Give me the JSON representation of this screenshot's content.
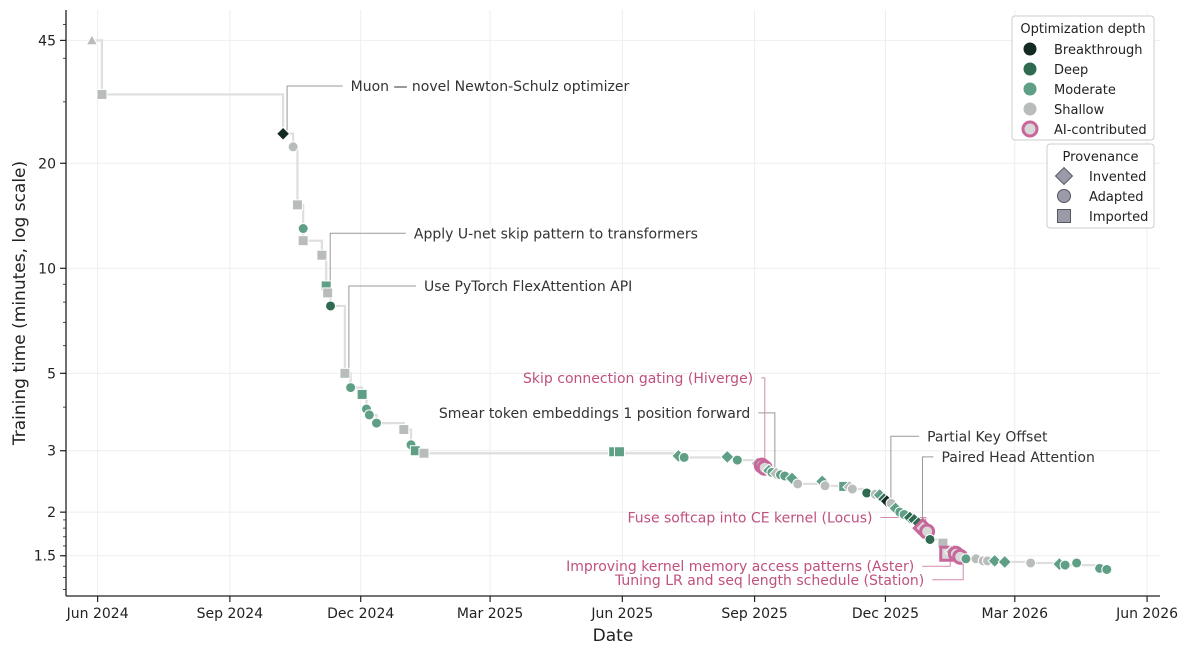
{
  "chart_data": {
    "type": "scatter",
    "xlabel": "Date",
    "ylabel": "Training time (minutes, log scale)",
    "y_scale": "log",
    "ylim": [
      1.15,
      55
    ],
    "xlim": [
      "2024-05-10",
      "2026-06-10"
    ],
    "grid": true,
    "x_ticks": [
      {
        "date": "2024-06-01",
        "label": "Jun 2024"
      },
      {
        "date": "2024-09-01",
        "label": "Sep 2024"
      },
      {
        "date": "2024-12-01",
        "label": "Dec 2024"
      },
      {
        "date": "2025-03-01",
        "label": "Mar 2025"
      },
      {
        "date": "2025-06-01",
        "label": "Jun 2025"
      },
      {
        "date": "2025-09-01",
        "label": "Sep 2025"
      },
      {
        "date": "2025-12-01",
        "label": "Dec 2025"
      },
      {
        "date": "2026-03-01",
        "label": "Mar 2026"
      },
      {
        "date": "2026-06-01",
        "label": "Jun 2026"
      }
    ],
    "y_ticks": [
      {
        "value": 45,
        "label": "45"
      },
      {
        "value": 20,
        "label": "20"
      },
      {
        "value": 10,
        "label": "10"
      },
      {
        "value": 5,
        "label": "5"
      },
      {
        "value": 3,
        "label": "3"
      },
      {
        "value": 2,
        "label": "2"
      },
      {
        "value": 1.5,
        "label": "1.5"
      }
    ],
    "depth_colors": {
      "breakthrough": "#132a22",
      "deep": "#2e6b50",
      "moderate": "#5f9f86",
      "shallow": "#b8bdbb",
      "ai": "#c8689a"
    },
    "points": [
      {
        "date": "2024-05-28",
        "y": 45,
        "shape": "triangle",
        "depth": "shallow"
      },
      {
        "date": "2024-06-04",
        "y": 31.5,
        "shape": "square",
        "depth": "shallow"
      },
      {
        "date": "2024-10-08",
        "y": 24.3,
        "shape": "diamond",
        "depth": "breakthrough"
      },
      {
        "date": "2024-10-15",
        "y": 22.3,
        "shape": "circle",
        "depth": "shallow"
      },
      {
        "date": "2024-10-18",
        "y": 15.2,
        "shape": "square",
        "depth": "shallow"
      },
      {
        "date": "2024-10-22",
        "y": 13.0,
        "shape": "circle",
        "depth": "moderate"
      },
      {
        "date": "2024-10-22",
        "y": 12.0,
        "shape": "square",
        "depth": "shallow"
      },
      {
        "date": "2024-11-04",
        "y": 10.9,
        "shape": "square",
        "depth": "shallow"
      },
      {
        "date": "2024-11-07",
        "y": 8.9,
        "shape": "square",
        "depth": "moderate"
      },
      {
        "date": "2024-11-08",
        "y": 8.5,
        "shape": "square",
        "depth": "shallow"
      },
      {
        "date": "2024-11-10",
        "y": 7.8,
        "shape": "circle",
        "depth": "deep"
      },
      {
        "date": "2024-11-20",
        "y": 5.0,
        "shape": "square",
        "depth": "shallow"
      },
      {
        "date": "2024-11-24",
        "y": 4.55,
        "shape": "circle",
        "depth": "moderate"
      },
      {
        "date": "2024-12-02",
        "y": 4.35,
        "shape": "square",
        "depth": "moderate"
      },
      {
        "date": "2024-12-05",
        "y": 3.95,
        "shape": "circle",
        "depth": "moderate"
      },
      {
        "date": "2024-12-07",
        "y": 3.8,
        "shape": "circle",
        "depth": "moderate"
      },
      {
        "date": "2024-12-12",
        "y": 3.6,
        "shape": "circle",
        "depth": "moderate"
      },
      {
        "date": "2024-12-31",
        "y": 3.45,
        "shape": "square",
        "depth": "shallow"
      },
      {
        "date": "2025-01-05",
        "y": 3.12,
        "shape": "circle",
        "depth": "moderate"
      },
      {
        "date": "2025-01-08",
        "y": 3.0,
        "shape": "square",
        "depth": "moderate"
      },
      {
        "date": "2025-01-14",
        "y": 2.95,
        "shape": "square",
        "depth": "shallow"
      },
      {
        "date": "2025-05-26",
        "y": 2.98,
        "shape": "square",
        "depth": "moderate"
      },
      {
        "date": "2025-05-30",
        "y": 2.98,
        "shape": "square",
        "depth": "moderate"
      },
      {
        "date": "2025-07-10",
        "y": 2.9,
        "shape": "diamond",
        "depth": "moderate"
      },
      {
        "date": "2025-07-14",
        "y": 2.87,
        "shape": "circle",
        "depth": "moderate"
      },
      {
        "date": "2025-08-13",
        "y": 2.88,
        "shape": "diamond",
        "depth": "moderate"
      },
      {
        "date": "2025-08-20",
        "y": 2.82,
        "shape": "circle",
        "depth": "moderate"
      },
      {
        "date": "2025-09-03",
        "y": 2.76,
        "shape": "diamond",
        "depth": "shallow"
      },
      {
        "date": "2025-09-06",
        "y": 2.72,
        "shape": "circle",
        "depth": "ai"
      },
      {
        "date": "2025-09-08",
        "y": 2.68,
        "shape": "circle",
        "depth": "ai"
      },
      {
        "date": "2025-09-11",
        "y": 2.63,
        "shape": "diamond",
        "depth": "moderate"
      },
      {
        "date": "2025-09-13",
        "y": 2.6,
        "shape": "circle",
        "depth": "moderate"
      },
      {
        "date": "2025-09-16",
        "y": 2.58,
        "shape": "diamond",
        "depth": "shallow"
      },
      {
        "date": "2025-09-19",
        "y": 2.56,
        "shape": "circle",
        "depth": "moderate"
      },
      {
        "date": "2025-09-22",
        "y": 2.54,
        "shape": "circle",
        "depth": "moderate"
      },
      {
        "date": "2025-09-27",
        "y": 2.5,
        "shape": "diamond",
        "depth": "moderate"
      },
      {
        "date": "2025-10-01",
        "y": 2.41,
        "shape": "circle",
        "depth": "shallow"
      },
      {
        "date": "2025-10-18",
        "y": 2.45,
        "shape": "diamond",
        "depth": "moderate"
      },
      {
        "date": "2025-10-20",
        "y": 2.38,
        "shape": "circle",
        "depth": "shallow"
      },
      {
        "date": "2025-11-02",
        "y": 2.37,
        "shape": "square",
        "depth": "moderate"
      },
      {
        "date": "2025-11-06",
        "y": 2.36,
        "shape": "diamond",
        "depth": "shallow"
      },
      {
        "date": "2025-11-08",
        "y": 2.33,
        "shape": "circle",
        "depth": "shallow"
      },
      {
        "date": "2025-11-18",
        "y": 2.27,
        "shape": "circle",
        "depth": "deep"
      },
      {
        "date": "2025-11-24",
        "y": 2.25,
        "shape": "circle",
        "depth": "shallow"
      },
      {
        "date": "2025-11-27",
        "y": 2.24,
        "shape": "diamond",
        "depth": "moderate"
      },
      {
        "date": "2025-11-30",
        "y": 2.18,
        "shape": "diamond",
        "depth": "deep"
      },
      {
        "date": "2025-12-02",
        "y": 2.15,
        "shape": "diamond",
        "depth": "breakthrough"
      },
      {
        "date": "2025-12-05",
        "y": 2.12,
        "shape": "circle",
        "depth": "shallow"
      },
      {
        "date": "2025-12-08",
        "y": 2.05,
        "shape": "diamond",
        "depth": "moderate"
      },
      {
        "date": "2025-12-11",
        "y": 2.0,
        "shape": "circle",
        "depth": "moderate"
      },
      {
        "date": "2025-12-14",
        "y": 1.97,
        "shape": "circle",
        "depth": "moderate"
      },
      {
        "date": "2025-12-18",
        "y": 1.93,
        "shape": "diamond",
        "depth": "deep"
      },
      {
        "date": "2025-12-21",
        "y": 1.9,
        "shape": "diamond",
        "depth": "deep"
      },
      {
        "date": "2025-12-24",
        "y": 1.86,
        "shape": "diamond",
        "depth": "deep"
      },
      {
        "date": "2025-12-27",
        "y": 1.8,
        "shape": "diamond",
        "depth": "ai"
      },
      {
        "date": "2025-12-30",
        "y": 1.76,
        "shape": "circle",
        "depth": "ai"
      },
      {
        "date": "2026-01-01",
        "y": 1.67,
        "shape": "circle",
        "depth": "deep"
      },
      {
        "date": "2026-01-10",
        "y": 1.63,
        "shape": "square",
        "depth": "shallow"
      },
      {
        "date": "2026-01-13",
        "y": 1.52,
        "shape": "square",
        "depth": "ai"
      },
      {
        "date": "2026-01-16",
        "y": 1.54,
        "shape": "diamond",
        "depth": "shallow"
      },
      {
        "date": "2026-01-19",
        "y": 1.52,
        "shape": "circle",
        "depth": "ai"
      },
      {
        "date": "2026-01-22",
        "y": 1.49,
        "shape": "circle",
        "depth": "ai"
      },
      {
        "date": "2026-01-26",
        "y": 1.47,
        "shape": "circle",
        "depth": "moderate"
      },
      {
        "date": "2026-02-02",
        "y": 1.47,
        "shape": "circle",
        "depth": "shallow"
      },
      {
        "date": "2026-02-07",
        "y": 1.45,
        "shape": "circle",
        "depth": "shallow"
      },
      {
        "date": "2026-02-10",
        "y": 1.45,
        "shape": "circle",
        "depth": "shallow"
      },
      {
        "date": "2026-02-15",
        "y": 1.45,
        "shape": "diamond",
        "depth": "moderate"
      },
      {
        "date": "2026-02-22",
        "y": 1.44,
        "shape": "diamond",
        "depth": "moderate"
      },
      {
        "date": "2026-03-12",
        "y": 1.43,
        "shape": "circle",
        "depth": "shallow"
      },
      {
        "date": "2026-04-01",
        "y": 1.42,
        "shape": "diamond",
        "depth": "moderate"
      },
      {
        "date": "2026-04-05",
        "y": 1.41,
        "shape": "circle",
        "depth": "moderate"
      },
      {
        "date": "2026-04-13",
        "y": 1.43,
        "shape": "circle",
        "depth": "moderate"
      },
      {
        "date": "2026-04-29",
        "y": 1.38,
        "shape": "circle",
        "depth": "moderate"
      },
      {
        "date": "2026-05-04",
        "y": 1.37,
        "shape": "circle",
        "depth": "moderate"
      }
    ],
    "annotations": [
      {
        "text": "Muon — novel Newton-Schulz optimizer",
        "date": "2024-10-08",
        "y": 24.3,
        "label_y": 33.3,
        "label_date": "2024-11-24",
        "color": "#333333"
      },
      {
        "text": "Apply U-net skip pattern to transformers",
        "date": "2024-11-07",
        "y": 8.9,
        "label_y": 12.6,
        "label_date": "2025-01-07",
        "color": "#333333"
      },
      {
        "text": "Use PyTorch FlexAttention API",
        "date": "2024-11-20",
        "y": 5.0,
        "label_y": 8.9,
        "label_date": "2025-01-14",
        "color": "#333333"
      },
      {
        "text": "Skip connection gating (Hiverge)",
        "date": "2025-09-06",
        "y": 2.72,
        "label_y": 4.85,
        "label_date": "2025-08-31",
        "color": "#c0507f"
      },
      {
        "text": "Smear token embeddings 1 position forward",
        "date": "2025-09-13",
        "y": 2.6,
        "label_y": 3.85,
        "label_date": "2025-08-29",
        "color": "#333333"
      },
      {
        "text": "Partial Key Offset",
        "date": "2025-12-02",
        "y": 2.15,
        "label_y": 3.3,
        "label_date": "2025-12-30",
        "color": "#333333"
      },
      {
        "text": "Paired Head Attention",
        "date": "2025-12-24",
        "y": 1.86,
        "label_y": 2.88,
        "label_date": "2026-01-09",
        "color": "#333333"
      },
      {
        "text": "Fuse softcap into CE kernel (Locus)",
        "date": "2025-12-27",
        "y": 1.8,
        "label_y": 1.93,
        "label_date": "2025-11-22",
        "color": "#c0507f"
      },
      {
        "text": "Improving kernel memory access patterns (Aster)",
        "date": "2026-01-13",
        "y": 1.52,
        "label_y": 1.4,
        "label_date": "2025-12-21",
        "color": "#c0507f"
      },
      {
        "text": "Tuning LR and seq length schedule (Station)",
        "date": "2026-01-22",
        "y": 1.49,
        "label_y": 1.28,
        "label_date": "2025-12-28",
        "color": "#c0507f"
      }
    ],
    "legend_depth": {
      "title": "Optimization depth",
      "items": [
        {
          "label": "Breakthrough",
          "depth": "breakthrough"
        },
        {
          "label": "Deep",
          "depth": "deep"
        },
        {
          "label": "Moderate",
          "depth": "moderate"
        },
        {
          "label": "Shallow",
          "depth": "shallow"
        },
        {
          "label": "AI-contributed",
          "depth": "ai"
        }
      ]
    },
    "legend_provenance": {
      "title": "Provenance",
      "items": [
        {
          "label": "Invented",
          "shape": "diamond"
        },
        {
          "label": "Adapted",
          "shape": "circle"
        },
        {
          "label": "Imported",
          "shape": "square"
        }
      ]
    },
    "legend_placement": "top-right"
  }
}
